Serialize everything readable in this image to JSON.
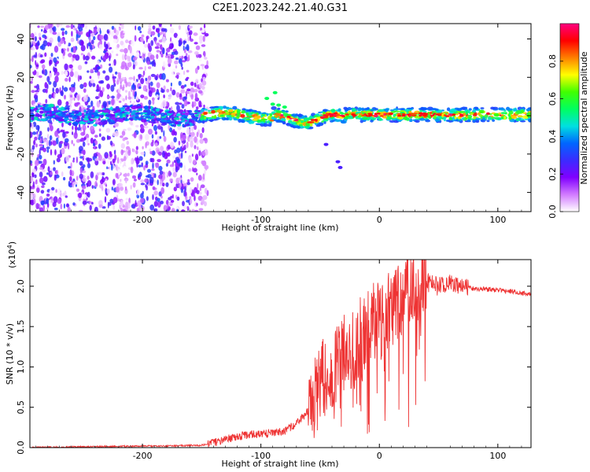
{
  "title": "C2E1.2023.242.21.40.G31",
  "chart_data": [
    {
      "type": "heatmap",
      "title": "C2E1.2023.242.21.40.G31",
      "xlabel": "Height of straight line (km)",
      "ylabel": "Frequency (Hz)",
      "xlim": [
        -295,
        128
      ],
      "ylim": [
        -50,
        48
      ],
      "x_ticks": [
        "-200",
        "-100",
        "0",
        "100"
      ],
      "x_tick_values": [
        -200,
        -100,
        0,
        100
      ],
      "y_ticks": [
        "-40",
        "-20",
        "0",
        "20",
        "40"
      ],
      "y_tick_values": [
        -40,
        -20,
        0,
        20,
        40
      ],
      "colorbar": {
        "label": "Normalized spectral amplitude",
        "range": [
          0,
          1
        ],
        "ticks": [
          "0.0",
          "0.2",
          "0.4",
          "0.6",
          "0.8"
        ],
        "tick_values": [
          0.0,
          0.2,
          0.4,
          0.6,
          0.8
        ],
        "colors": [
          "#ffffff",
          "#d27bff",
          "#8000ff",
          "#3b2bff",
          "#0066ff",
          "#00e0e0",
          "#00ff60",
          "#40ff00",
          "#ffff00",
          "#ff8000",
          "#ff0000",
          "#ff0080"
        ]
      },
      "grid": false
    },
    {
      "type": "line",
      "xlabel": "Height of straight line (km)",
      "ylabel": "SNR (10 * v/v)",
      "y_multiplier": "(x10",
      "y_multiplier_exp": "4",
      "y_multiplier_close": ")",
      "xlim": [
        -295,
        128
      ],
      "ylim": [
        0,
        2.33
      ],
      "x_ticks": [
        "-200",
        "-100",
        "0",
        "100"
      ],
      "x_tick_values": [
        -200,
        -100,
        0,
        100
      ],
      "y_ticks": [
        "0.0",
        "0.5",
        "1.0",
        "1.5",
        "2.0"
      ],
      "y_tick_values": [
        0.0,
        0.5,
        1.0,
        1.5,
        2.0
      ],
      "color": "#ee3333",
      "series": [
        {
          "x": [
            -295,
            -250,
            -200,
            -180,
            -150,
            -140,
            -130,
            -120,
            -110,
            -100,
            -90,
            -80,
            -70,
            -60,
            -55,
            -50,
            -45,
            -40,
            -35,
            -30,
            -25,
            -20,
            -15,
            -10,
            -5,
            0,
            5,
            10,
            15,
            20,
            25,
            30,
            35,
            40,
            45,
            50,
            55,
            60,
            65,
            70,
            75,
            80,
            90,
            100,
            110,
            120,
            128
          ],
          "y": [
            0.0,
            0.01,
            0.02,
            0.02,
            0.03,
            0.06,
            0.1,
            0.14,
            0.16,
            0.17,
            0.18,
            0.2,
            0.3,
            0.45,
            0.6,
            0.8,
            0.9,
            1.0,
            1.05,
            1.2,
            1.25,
            1.15,
            1.3,
            1.45,
            1.55,
            1.6,
            1.68,
            1.75,
            1.8,
            1.88,
            1.95,
            2.0,
            2.02,
            2.05,
            2.02,
            2.0,
            2.03,
            2.04,
            2.03,
            2.0,
            1.98,
            1.97,
            1.96,
            1.95,
            1.94,
            1.92,
            1.9
          ]
        }
      ],
      "grid": false
    }
  ]
}
